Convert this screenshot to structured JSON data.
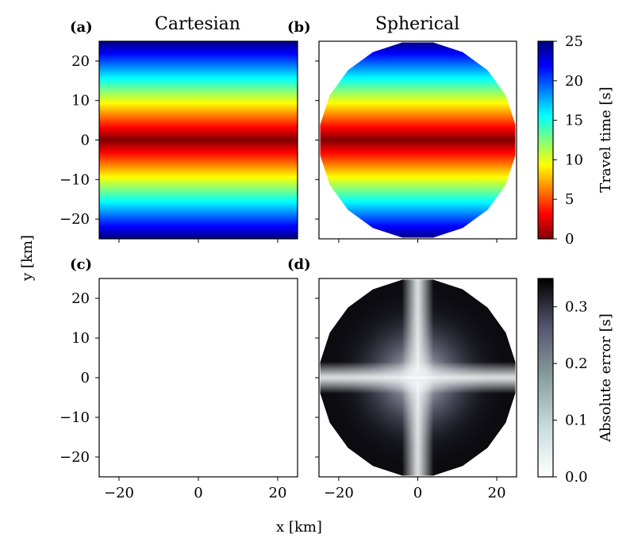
{
  "chart_data": {
    "type": "heatmap",
    "xlabel": "x [km]",
    "ylabel": "y [km]",
    "x_ticks": [
      -20,
      0,
      20
    ],
    "y_ticks": [
      -20,
      -10,
      0,
      10,
      20
    ],
    "x_tick_labels": [
      "−20",
      "0",
      "20"
    ],
    "y_tick_labels": [
      "−20",
      "−10",
      "0",
      "10",
      "20"
    ],
    "xlim": [
      -25,
      25
    ],
    "ylim": [
      -25,
      25
    ],
    "domain_radius_km": 25,
    "panels": [
      {
        "id": "a",
        "label": "(a)",
        "title": "Cartesian",
        "field": "travel_time",
        "domain": "square"
      },
      {
        "id": "b",
        "label": "(b)",
        "title": "Spherical",
        "field": "travel_time",
        "domain": "disk"
      },
      {
        "id": "c",
        "label": "(c)",
        "title": "",
        "field": "absolute_error",
        "domain": "square",
        "empty": true
      },
      {
        "id": "d",
        "label": "(d)",
        "title": "",
        "field": "absolute_error",
        "domain": "disk"
      }
    ],
    "colorbars": [
      {
        "id": "travel-time",
        "label": "Travel time [s]",
        "cmap": "jet_r",
        "range": [
          0,
          25
        ],
        "ticks": [
          0,
          5,
          10,
          15,
          20,
          25
        ],
        "tick_labels": [
          "0",
          "5",
          "10",
          "15",
          "20",
          "25"
        ]
      },
      {
        "id": "absolute-error",
        "label": "Absolute error [s]",
        "cmap": "bone_r",
        "range": [
          0.0,
          0.35
        ],
        "ticks": [
          0.0,
          0.1,
          0.2,
          0.3
        ],
        "tick_labels": [
          "0.0",
          "0.1",
          "0.2",
          "0.3"
        ]
      }
    ]
  },
  "colors": {
    "jet": [
      "#00007f",
      "#0000ff",
      "#007fff",
      "#00ffff",
      "#7fff7f",
      "#ffff00",
      "#ff7f00",
      "#ff0000",
      "#7f0000"
    ],
    "bone_r": [
      "#ffffff",
      "#c9dddd",
      "#8a9f9f",
      "#575770",
      "#000000"
    ]
  }
}
